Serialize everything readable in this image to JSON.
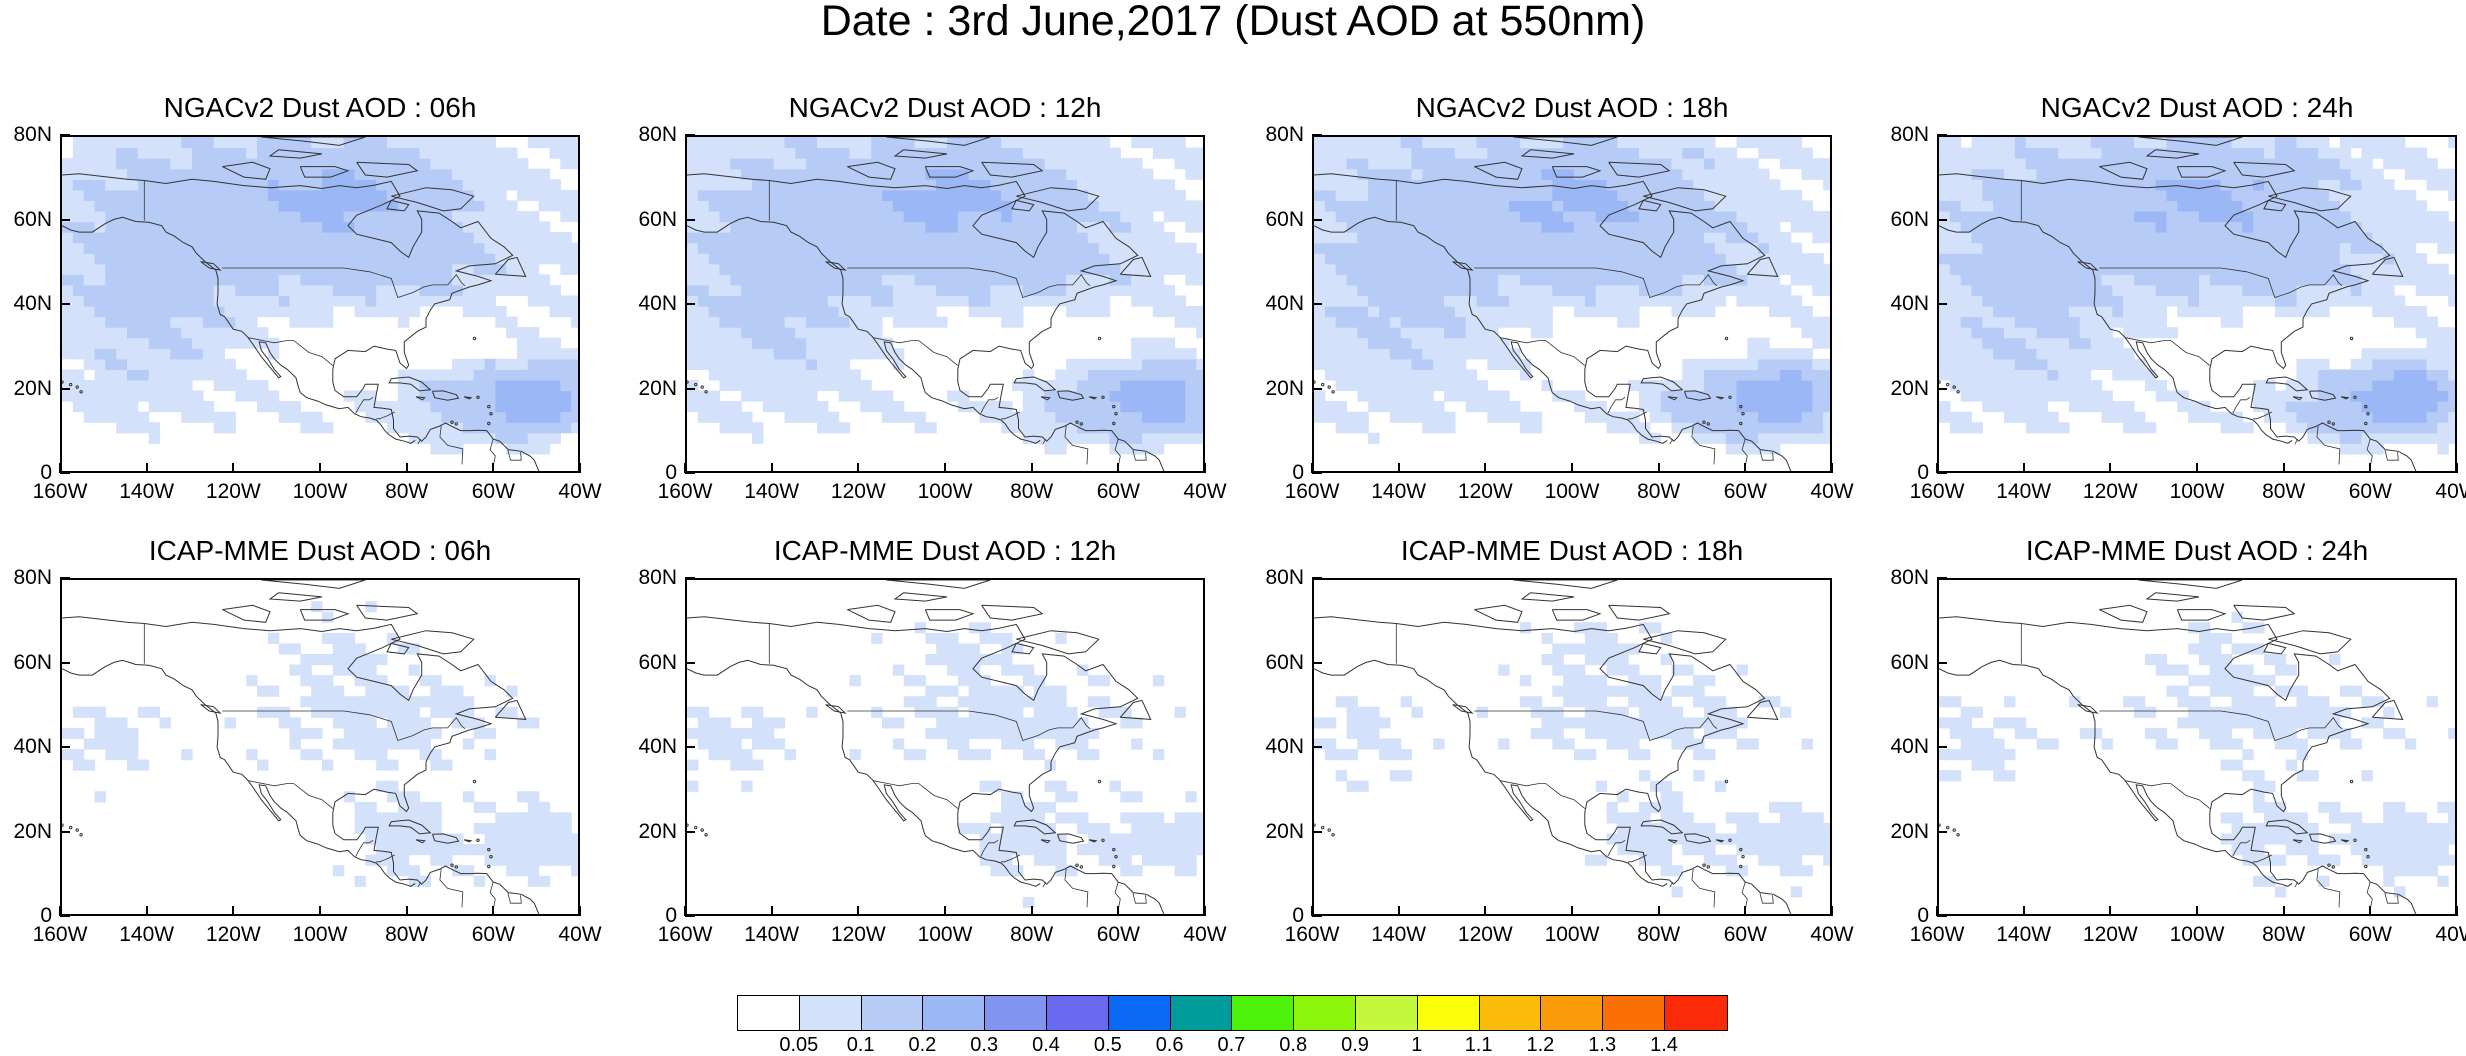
{
  "figure_title": "Date : 3rd June,2017 (Dust AOD at 550nm)",
  "axes": {
    "y_ticks": [
      "0",
      "20N",
      "40N",
      "60N",
      "80N"
    ],
    "y_values": [
      0,
      20,
      40,
      60,
      80
    ],
    "x_ticks": [
      "160W",
      "140W",
      "120W",
      "100W",
      "80W",
      "60W",
      "40W"
    ],
    "x_values": [
      -160,
      -140,
      -120,
      -100,
      -80,
      -60,
      -40
    ]
  },
  "panels": [
    {
      "title": "NGACv2 Dust AOD : 06h",
      "model": "ngac",
      "hour": 6
    },
    {
      "title": "NGACv2 Dust AOD : 12h",
      "model": "ngac",
      "hour": 12
    },
    {
      "title": "NGACv2 Dust AOD : 18h",
      "model": "ngac",
      "hour": 18
    },
    {
      "title": "NGACv2 Dust AOD : 24h",
      "model": "ngac",
      "hour": 24
    },
    {
      "title": "ICAP-MME Dust AOD : 06h",
      "model": "icap",
      "hour": 6
    },
    {
      "title": "ICAP-MME Dust AOD : 12h",
      "model": "icap",
      "hour": 12
    },
    {
      "title": "ICAP-MME Dust AOD : 18h",
      "model": "icap",
      "hour": 18
    },
    {
      "title": "ICAP-MME Dust AOD : 24h",
      "model": "icap",
      "hour": 24
    }
  ],
  "colorbar": {
    "colors": [
      "#ffffff",
      "#d4e1fb",
      "#b7cbf7",
      "#9bb7f5",
      "#8195f0",
      "#6a6af0",
      "#0a6af5",
      "#009b9b",
      "#4ef10a",
      "#8cf50a",
      "#c3f83d",
      "#fbff0a",
      "#fbbb0a",
      "#fb9b0a",
      "#fb7005",
      "#fb2b0a"
    ],
    "labels": [
      "0.05",
      "0.1",
      "0.2",
      "0.3",
      "0.4",
      "0.5",
      "0.6",
      "0.7",
      "0.8",
      "0.9",
      "1",
      "1.1",
      "1.2",
      "1.3",
      "1.4"
    ]
  }
}
